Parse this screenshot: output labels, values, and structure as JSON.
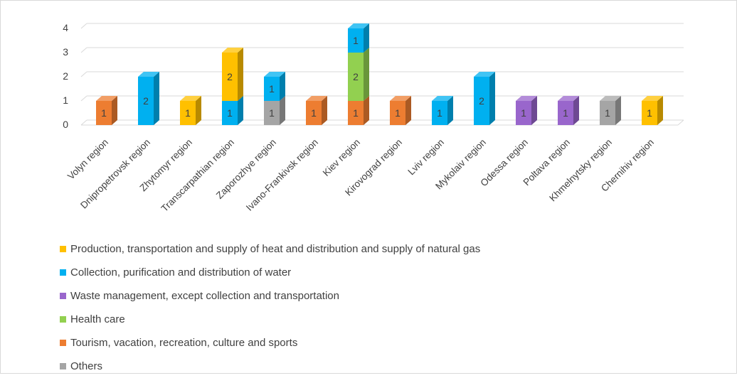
{
  "chart_data": {
    "type": "bar",
    "stacked": true,
    "three_d": true,
    "categories": [
      "Volyn region",
      "Dnipropetrovsk region",
      "Zhytomyr region",
      "Transcarpathian region",
      "Zaporozhye region",
      "Ivano-Frankivsk region",
      "Kiev region",
      "Kirovograd region",
      "Lviv region",
      "Mykolaiv region",
      "Odessa region",
      "Poltava region",
      "Khmelnytsky region",
      "Chernihiv region"
    ],
    "series": [
      {
        "name": "Tourism, vacation, recreation, culture and sports",
        "color": "#ED7D31",
        "values": [
          1,
          0,
          0,
          0,
          0,
          1,
          1,
          1,
          0,
          0,
          0,
          0,
          0,
          0
        ]
      },
      {
        "name": "Others",
        "color": "#A5A5A5",
        "values": [
          0,
          0,
          0,
          0,
          1,
          0,
          0,
          0,
          0,
          0,
          0,
          0,
          1,
          0
        ]
      },
      {
        "name": "Health care",
        "color": "#92D050",
        "values": [
          0,
          0,
          0,
          0,
          0,
          0,
          2,
          0,
          0,
          0,
          0,
          0,
          0,
          0
        ]
      },
      {
        "name": "Waste management, except collection and transportation",
        "color": "#9966CC",
        "values": [
          0,
          0,
          0,
          0,
          0,
          0,
          0,
          0,
          0,
          0,
          1,
          1,
          0,
          0
        ]
      },
      {
        "name": "Collection, purification and distribution of water",
        "color": "#00B0F0",
        "values": [
          0,
          2,
          0,
          1,
          1,
          0,
          1,
          0,
          1,
          2,
          0,
          0,
          0,
          0
        ]
      },
      {
        "name": "Production, transportation and supply of heat and distribution and supply of natural gas",
        "color": "#FFC000",
        "values": [
          0,
          0,
          1,
          2,
          0,
          0,
          0,
          0,
          0,
          0,
          0,
          0,
          0,
          1
        ]
      }
    ],
    "legend_order": [
      5,
      4,
      3,
      2,
      0,
      1
    ],
    "yticks": [
      "0",
      "1",
      "2",
      "3",
      "4"
    ],
    "ylim": [
      0,
      4
    ],
    "grid": true,
    "legend_position": "bottom-left"
  }
}
